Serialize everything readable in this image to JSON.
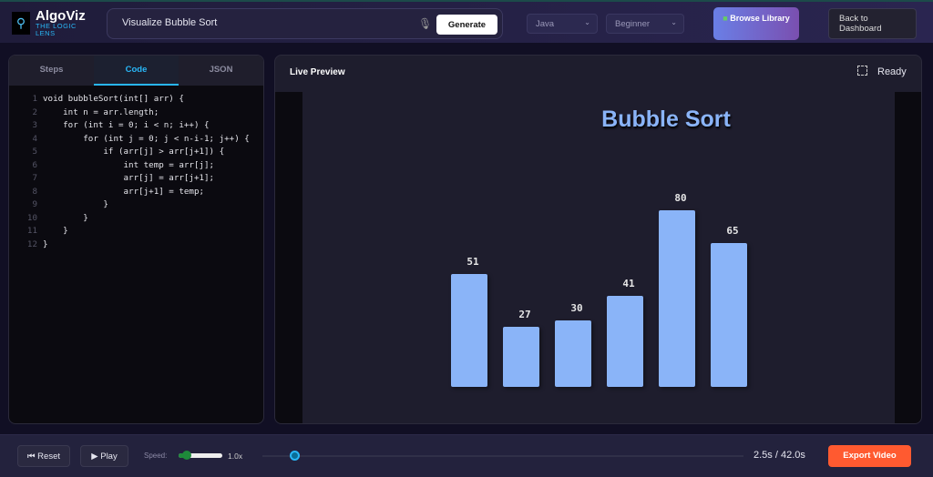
{
  "header": {
    "brand": "AlgoViz",
    "tagline": "THE LOGIC LENS",
    "search_value": "Visualize Bubble Sort",
    "generate_label": "Generate",
    "language": "Java",
    "level": "Beginner",
    "browse_label": "Browse Library",
    "back_label": "Back to Dashboard"
  },
  "left_panel": {
    "tabs": [
      {
        "label": "Steps"
      },
      {
        "label": "Code",
        "active": true
      },
      {
        "label": "JSON"
      }
    ],
    "code_lines": [
      "void bubbleSort(int[] arr) {",
      "    int n = arr.length;",
      "    for (int i = 0; i < n; i++) {",
      "        for (int j = 0; j < n-i-1; j++) {",
      "            if (arr[j] > arr[j+1]) {",
      "                int temp = arr[j];",
      "                arr[j] = arr[j+1];",
      "                arr[j+1] = temp;",
      "            }",
      "        }",
      "    }",
      "}"
    ]
  },
  "preview": {
    "title": "Live Preview",
    "status": "Ready",
    "viz_title": "Bubble Sort"
  },
  "chart_data": {
    "type": "bar",
    "title": "Bubble Sort",
    "values": [
      51,
      27,
      30,
      41,
      80,
      65
    ],
    "color": "#8ab4f8"
  },
  "controls": {
    "reset_label": "⏮ Reset",
    "play_label": "▶ Play",
    "speed_label": "Speed:",
    "speed_value": "1.0x",
    "speed_fraction": 0.1,
    "time": "2.5s / 42.0s",
    "progress_fraction": 0.06,
    "export_label": "Export Video",
    "export_color": "#ff5a30"
  }
}
